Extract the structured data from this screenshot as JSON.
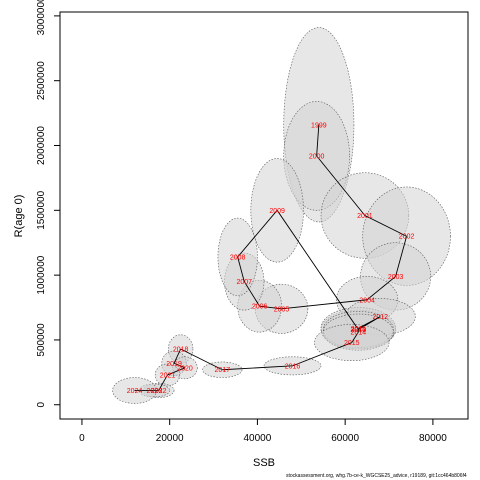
{
  "chart_data": {
    "type": "scatter",
    "xlabel": "SSB",
    "ylabel": "R(age 0)",
    "xlim": [
      -5000,
      88000
    ],
    "ylim": [
      -110000,
      3030000
    ],
    "xticks": [
      0,
      20000,
      40000,
      60000,
      80000
    ],
    "yticks": [
      0,
      500000,
      1000000,
      1500000,
      2000000,
      2500000,
      3000000
    ],
    "xtick_labels": [
      "0",
      "20000",
      "40000",
      "60000",
      "80000"
    ],
    "ytick_labels": [
      "0",
      "500000",
      "1000000",
      "1500000",
      "2000000",
      "2500000",
      "3000000"
    ],
    "grid": false,
    "legend": "none",
    "line_color": "#000000",
    "label_color": "#ff0000",
    "ellipse_fill": "#d3d3d3",
    "ellipse_stroke": "#555555",
    "points": [
      {
        "year": "1999",
        "x": 54000,
        "y": 2160000,
        "rx": 8000,
        "ry": 750000
      },
      {
        "year": "2000",
        "x": 53500,
        "y": 1920000,
        "rx": 7500,
        "ry": 420000
      },
      {
        "year": "2001",
        "x": 64500,
        "y": 1460000,
        "rx": 10000,
        "ry": 330000
      },
      {
        "year": "2002",
        "x": 74000,
        "y": 1300000,
        "rx": 10000,
        "ry": 380000
      },
      {
        "year": "2003",
        "x": 71500,
        "y": 990000,
        "rx": 8000,
        "ry": 260000
      },
      {
        "year": "2004",
        "x": 65000,
        "y": 810000,
        "rx": 7000,
        "ry": 180000
      },
      {
        "year": "2005",
        "x": 45500,
        "y": 740000,
        "rx": 6000,
        "ry": 190000
      },
      {
        "year": "2006",
        "x": 40500,
        "y": 760000,
        "rx": 5000,
        "ry": 200000
      },
      {
        "year": "2007",
        "x": 37000,
        "y": 950000,
        "rx": 4500,
        "ry": 220000
      },
      {
        "year": "2008",
        "x": 35500,
        "y": 1140000,
        "rx": 4500,
        "ry": 300000
      },
      {
        "year": "2009",
        "x": 44500,
        "y": 1500000,
        "rx": 6000,
        "ry": 400000
      },
      {
        "year": "2010",
        "x": 63000,
        "y": 580000,
        "rx": 8500,
        "ry": 150000
      },
      {
        "year": "2011",
        "x": 63000,
        "y": 590000,
        "rx": 8500,
        "ry": 160000
      },
      {
        "year": "2012",
        "x": 68000,
        "y": 680000,
        "rx": 8000,
        "ry": 140000
      },
      {
        "year": "2013",
        "x": 63000,
        "y": 580000,
        "rx": 8000,
        "ry": 140000
      },
      {
        "year": "2014",
        "x": 63000,
        "y": 560000,
        "rx": 8000,
        "ry": 140000
      },
      {
        "year": "2015",
        "x": 61500,
        "y": 480000,
        "rx": 8500,
        "ry": 140000
      },
      {
        "year": "2016",
        "x": 48000,
        "y": 300000,
        "rx": 6500,
        "ry": 70000
      },
      {
        "year": "2017",
        "x": 32000,
        "y": 270000,
        "rx": 4500,
        "ry": 60000
      },
      {
        "year": "2018",
        "x": 22500,
        "y": 430000,
        "rx": 2800,
        "ry": 110000
      },
      {
        "year": "2019",
        "x": 21000,
        "y": 320000,
        "rx": 2800,
        "ry": 95000
      },
      {
        "year": "2020",
        "x": 23500,
        "y": 285000,
        "rx": 2800,
        "ry": 85000
      },
      {
        "year": "2021",
        "x": 19500,
        "y": 230000,
        "rx": 2800,
        "ry": 85000
      },
      {
        "year": "2022",
        "x": 17500,
        "y": 110000,
        "rx": 3500,
        "ry": 55000
      },
      {
        "year": "2023",
        "x": 16500,
        "y": 110000,
        "rx": 3500,
        "ry": 50000
      },
      {
        "year": "2024",
        "x": 12000,
        "y": 110000,
        "rx": 5000,
        "ry": 100000
      }
    ],
    "path_order": [
      "1999",
      "2000",
      "2001",
      "2002",
      "2003",
      "2004",
      "2005",
      "2006",
      "2007",
      "2008",
      "2009",
      "2010",
      "2011",
      "2012",
      "2013",
      "2014",
      "2015",
      "2016",
      "2017",
      "2018",
      "2019",
      "2020",
      "2021",
      "2022",
      "2023",
      "2024"
    ]
  },
  "footnote": "stockassessment.org, whg.7b-ce-k_WGCSE25_advice, r19189, git:1cc464b806f4"
}
